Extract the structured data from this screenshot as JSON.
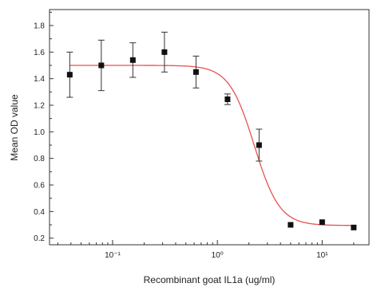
{
  "chart_data": {
    "type": "scatter",
    "title": "",
    "xlabel": "Recombinant goat IL1a (ug/ml)",
    "ylabel": "Mean OD value",
    "xscale": "log",
    "xlim": [
      0.025,
      28
    ],
    "ylim": [
      0.15,
      1.92
    ],
    "x_ticks": [
      {
        "value": 0.1,
        "label": "10⁻¹"
      },
      {
        "value": 1,
        "label": "10⁰"
      },
      {
        "value": 10,
        "label": "10¹"
      }
    ],
    "y_ticks": [
      0.2,
      0.4,
      0.6,
      0.8,
      1.0,
      1.2,
      1.4,
      1.6,
      1.8
    ],
    "y_tick_labels": [
      "0.2",
      "0.4",
      "0.6",
      "0.8",
      "1.0",
      "1.2",
      "1.4",
      "1.6",
      "1.8"
    ],
    "grid": false,
    "series": [
      {
        "marker": "square",
        "color": "#111111",
        "points": [
          {
            "x": 0.039,
            "y": 1.43,
            "err": 0.17
          },
          {
            "x": 0.078,
            "y": 1.5,
            "err": 0.19
          },
          {
            "x": 0.156,
            "y": 1.54,
            "err": 0.13
          },
          {
            "x": 0.3125,
            "y": 1.6,
            "err": 0.15
          },
          {
            "x": 0.625,
            "y": 1.45,
            "err": 0.12
          },
          {
            "x": 1.25,
            "y": 1.245,
            "err": 0.04
          },
          {
            "x": 2.5,
            "y": 0.9,
            "err": 0.12
          },
          {
            "x": 5,
            "y": 0.3,
            "err": 0.0
          },
          {
            "x": 10,
            "y": 0.32,
            "err": 0.0
          },
          {
            "x": 20,
            "y": 0.28,
            "err": 0.0
          }
        ]
      }
    ],
    "fit": {
      "model": "4PL",
      "color": "#e8524f",
      "top": 1.5,
      "bottom": 0.295,
      "ec50": 2.25,
      "hill": 3.6,
      "x_range": [
        0.039,
        20
      ]
    }
  }
}
